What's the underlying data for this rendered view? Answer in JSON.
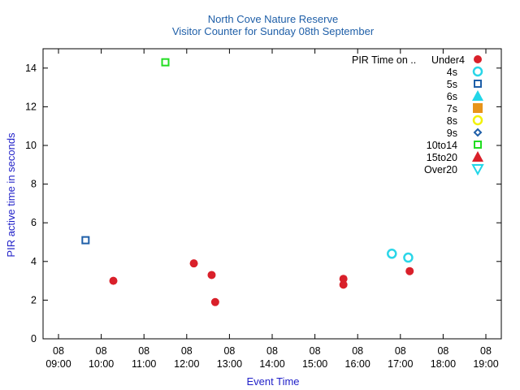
{
  "chart_data": {
    "type": "scatter",
    "title": "North Cove Nature Reserve",
    "subtitle": "Visitor Counter for Sunday 08th September",
    "xlabel": "Event Time",
    "ylabel": "PIR active time in seconds",
    "xlim": [
      "08 09:00",
      "08 19:00"
    ],
    "ylim": [
      0,
      15
    ],
    "x_ticks": [
      {
        "day": "08",
        "time": "09:00"
      },
      {
        "day": "08",
        "time": "10:00"
      },
      {
        "day": "08",
        "time": "11:00"
      },
      {
        "day": "08",
        "time": "12:00"
      },
      {
        "day": "08",
        "time": "13:00"
      },
      {
        "day": "08",
        "time": "14:00"
      },
      {
        "day": "08",
        "time": "15:00"
      },
      {
        "day": "08",
        "time": "16:00"
      },
      {
        "day": "08",
        "time": "17:00"
      },
      {
        "day": "08",
        "time": "18:00"
      },
      {
        "day": "08",
        "time": "19:00"
      }
    ],
    "y_ticks": [
      "0",
      "2",
      "4",
      "6",
      "8",
      "10",
      "12",
      "14"
    ],
    "legend_title": "PIR Time on ..",
    "legend_position": "top-right",
    "series": [
      {
        "name": "Under4",
        "marker": "filled-circle",
        "color": "#d9202a",
        "points": [
          {
            "x": "10:17",
            "y": 3.0
          },
          {
            "x": "12:10",
            "y": 3.9
          },
          {
            "x": "12:35",
            "y": 3.3
          },
          {
            "x": "12:40",
            "y": 1.9
          },
          {
            "x": "15:40",
            "y": 3.1
          },
          {
            "x": "15:40",
            "y": 2.8
          },
          {
            "x": "17:13",
            "y": 3.5
          }
        ]
      },
      {
        "name": "4s",
        "marker": "open-circle",
        "color": "#2ad6e8",
        "points": [
          {
            "x": "16:48",
            "y": 4.4
          },
          {
            "x": "17:11",
            "y": 4.2
          }
        ]
      },
      {
        "name": "5s",
        "marker": "open-square",
        "color": "#1f5fa8",
        "points": [
          {
            "x": "09:38",
            "y": 5.1
          }
        ]
      },
      {
        "name": "6s",
        "marker": "filled-triangle-up",
        "color": "#22d6e8",
        "points": []
      },
      {
        "name": "7s",
        "marker": "filled-square",
        "color": "#e8941a",
        "points": []
      },
      {
        "name": "8s",
        "marker": "open-circle",
        "color": "#f2f20a",
        "points": []
      },
      {
        "name": "9s",
        "marker": "open-diamond",
        "color": "#1f5fa8",
        "points": []
      },
      {
        "name": "10to14",
        "marker": "open-square",
        "color": "#22dd22",
        "points": [
          {
            "x": "11:30",
            "y": 14.3
          }
        ]
      },
      {
        "name": "15to20",
        "marker": "filled-triangle-up",
        "color": "#d9202a",
        "points": []
      },
      {
        "name": "Over20",
        "marker": "open-triangle-down",
        "color": "#22d6e8",
        "points": []
      }
    ]
  }
}
